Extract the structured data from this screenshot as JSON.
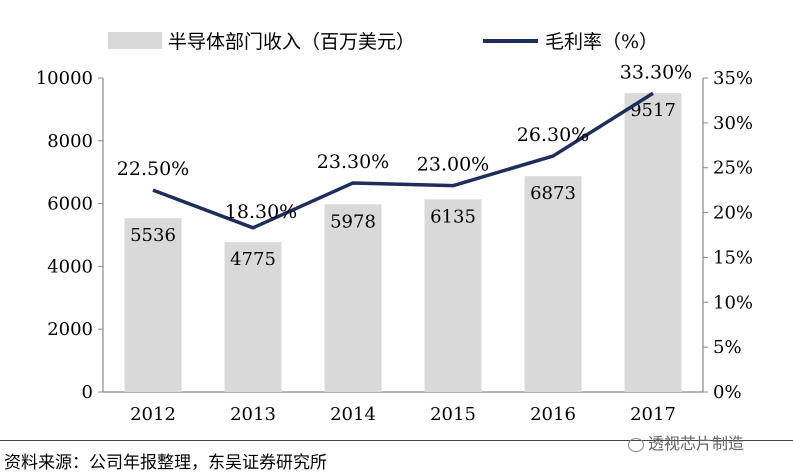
{
  "chart_data": {
    "type": "bar+line",
    "categories": [
      "2012",
      "2013",
      "2014",
      "2015",
      "2016",
      "2017"
    ],
    "series": [
      {
        "name": "半导体部门收入（百万美元）",
        "type": "bar",
        "axis": "left",
        "values": [
          5536,
          4775,
          5978,
          6135,
          6873,
          9517
        ],
        "labels": [
          "5536",
          "4775",
          "5978",
          "6135",
          "6873",
          "9517"
        ],
        "color": "#d9d9d9"
      },
      {
        "name": "毛利率（%）",
        "type": "line",
        "axis": "right",
        "values": [
          22.5,
          18.3,
          23.3,
          23.0,
          26.3,
          33.3
        ],
        "labels": [
          "22.50%",
          "18.30%",
          "23.30%",
          "23.00%",
          "26.30%",
          "33.30%"
        ],
        "color": "#1f2d5c"
      }
    ],
    "y_left": {
      "min": 0,
      "max": 10000,
      "ticks": [
        "0",
        "2000",
        "4000",
        "6000",
        "8000",
        "10000"
      ]
    },
    "y_right": {
      "min": 0,
      "max": 35,
      "ticks": [
        "0%",
        "5%",
        "10%",
        "15%",
        "20%",
        "25%",
        "30%",
        "35%"
      ]
    },
    "legend_position": "top"
  },
  "source_note": "资料来源：公司年报整理，东吴证券研究所",
  "watermark": "透视芯片制造"
}
